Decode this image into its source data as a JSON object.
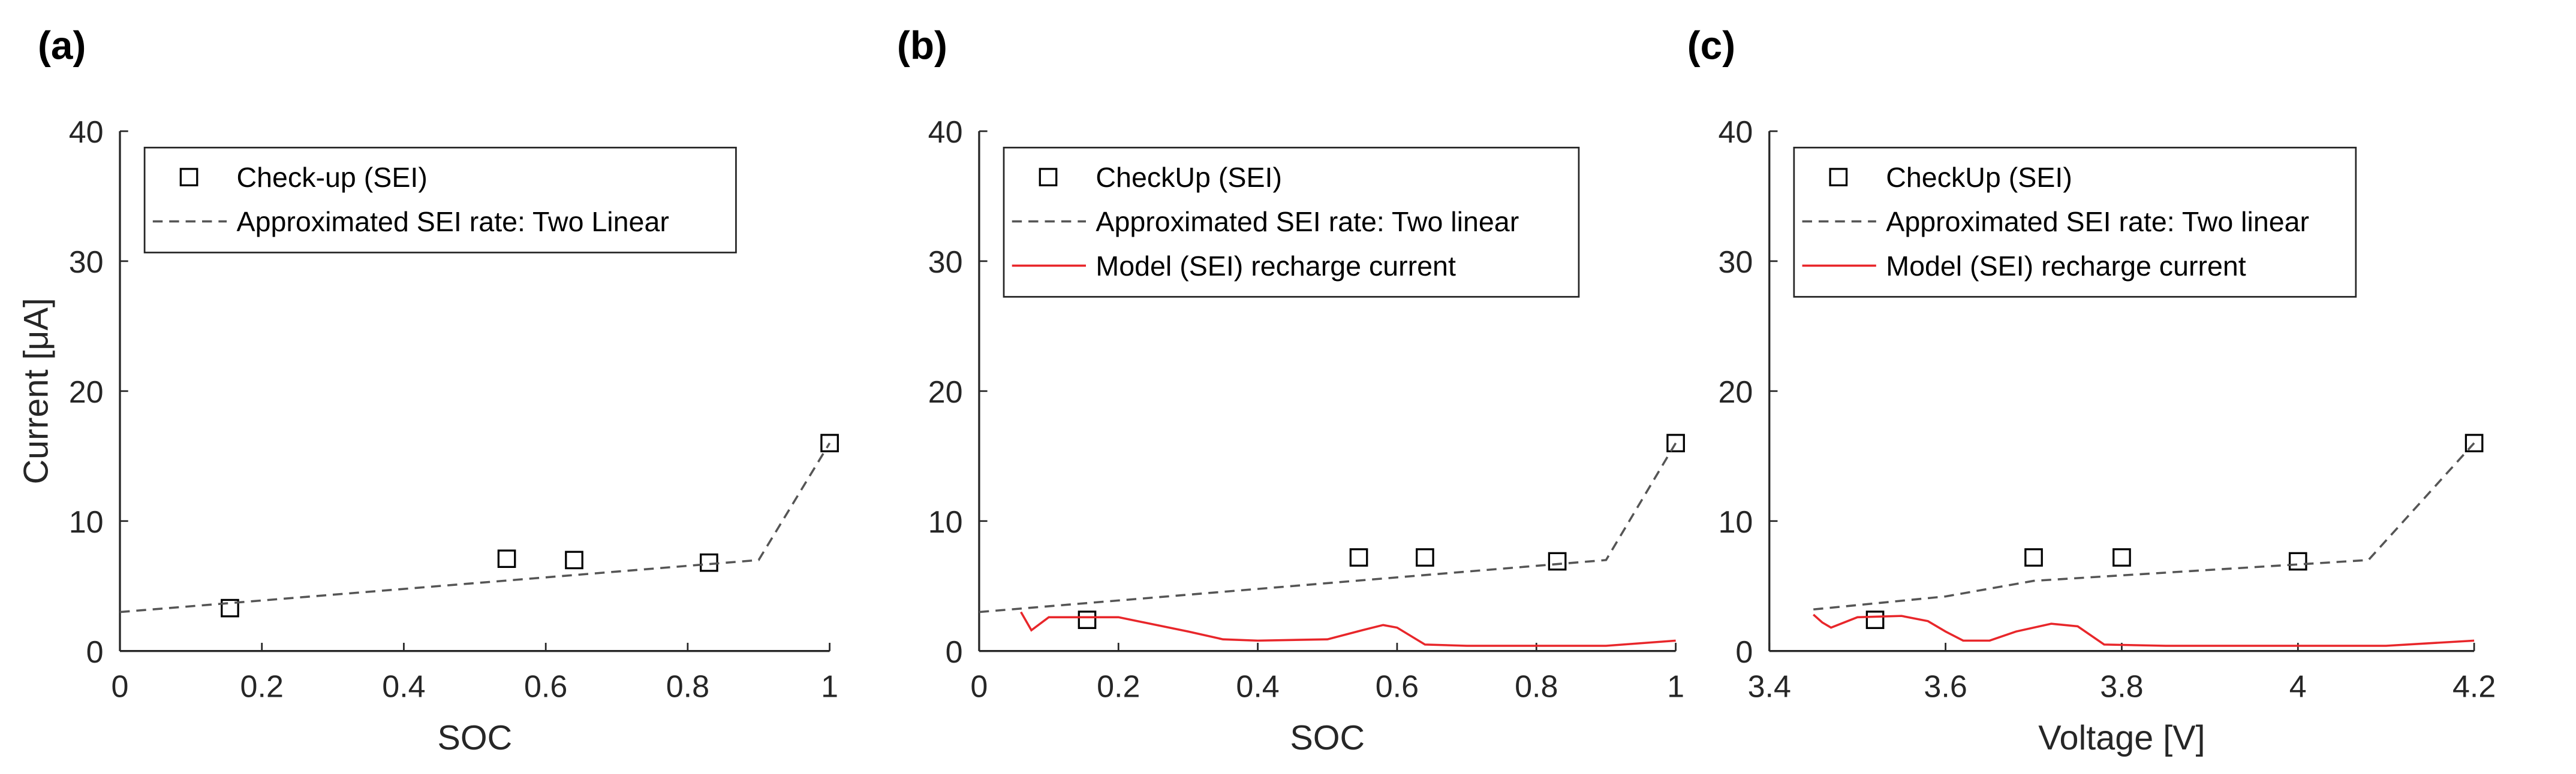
{
  "chart_data": [
    {
      "type": "line",
      "panel_label": "(a)",
      "xlabel": "SOC",
      "ylabel": "Current [μA]",
      "xlim": [
        0,
        1
      ],
      "ylim": [
        0,
        40
      ],
      "xticks": [
        0,
        0.2,
        0.4,
        0.6,
        0.8,
        1
      ],
      "yticks": [
        0,
        10,
        20,
        30,
        40
      ],
      "series": [
        {
          "name": "Check-up (SEI)",
          "style": "markers",
          "color": "#000000",
          "x": [
            0.155,
            0.545,
            0.64,
            0.83,
            1.0
          ],
          "values": [
            3.3,
            7.1,
            7.0,
            6.8,
            16.0
          ]
        },
        {
          "name": "Approximated SEI rate: Two Linear",
          "style": "dashed",
          "color": "#555555",
          "x": [
            0,
            0.9,
            1.0
          ],
          "values": [
            3.0,
            7.0,
            16.0
          ]
        }
      ]
    },
    {
      "type": "line",
      "panel_label": "(b)",
      "xlabel": "SOC",
      "xlim": [
        0,
        1
      ],
      "ylim": [
        0,
        40
      ],
      "xticks": [
        0,
        0.2,
        0.4,
        0.6,
        0.8,
        1
      ],
      "yticks": [
        0,
        10,
        20,
        30,
        40
      ],
      "series": [
        {
          "name": "CheckUp (SEI)",
          "style": "markers",
          "color": "#000000",
          "x": [
            0.155,
            0.545,
            0.64,
            0.83,
            1.0
          ],
          "values": [
            2.4,
            7.2,
            7.2,
            6.9,
            16.0
          ]
        },
        {
          "name": "Approximated SEI rate: Two linear",
          "style": "dashed",
          "color": "#555555",
          "x": [
            0,
            0.9,
            1.0
          ],
          "values": [
            3.0,
            7.0,
            16.0
          ]
        },
        {
          "name": "Model (SEI) recharge current",
          "style": "solid",
          "color": "#e8262a",
          "x": [
            0.06,
            0.075,
            0.1,
            0.2,
            0.3,
            0.35,
            0.4,
            0.5,
            0.55,
            0.58,
            0.6,
            0.64,
            0.7,
            0.9,
            1.0
          ],
          "values": [
            3.0,
            1.6,
            2.6,
            2.6,
            1.5,
            0.9,
            0.8,
            0.9,
            1.6,
            2.0,
            1.8,
            0.5,
            0.4,
            0.4,
            0.8
          ]
        }
      ]
    },
    {
      "type": "line",
      "panel_label": "(c)",
      "xlabel": "Voltage [V]",
      "xlim": [
        3.4,
        4.2
      ],
      "ylim": [
        0,
        40
      ],
      "xticks": [
        3.4,
        3.6,
        3.8,
        4,
        4.2
      ],
      "yticks": [
        0,
        10,
        20,
        30,
        40
      ],
      "series": [
        {
          "name": "CheckUp (SEI)",
          "style": "markers",
          "color": "#000000",
          "x": [
            3.52,
            3.7,
            3.8,
            4.0,
            4.2
          ],
          "values": [
            2.4,
            7.2,
            7.2,
            6.9,
            16.0
          ]
        },
        {
          "name": "Approximated SEI rate: Two linear",
          "style": "dashed",
          "color": "#555555",
          "x": [
            3.45,
            3.6,
            3.7,
            4.08,
            4.2
          ],
          "values": [
            3.2,
            4.2,
            5.4,
            7.0,
            16.0
          ]
        },
        {
          "name": "Model (SEI) recharge current",
          "style": "solid",
          "color": "#e8262a",
          "x": [
            3.45,
            3.46,
            3.47,
            3.5,
            3.55,
            3.58,
            3.6,
            3.62,
            3.65,
            3.68,
            3.72,
            3.75,
            3.78,
            3.85,
            4.1,
            4.2
          ],
          "values": [
            2.8,
            2.2,
            1.8,
            2.6,
            2.7,
            2.3,
            1.5,
            0.8,
            0.8,
            1.5,
            2.1,
            1.9,
            0.5,
            0.4,
            0.4,
            0.8
          ]
        }
      ]
    }
  ]
}
